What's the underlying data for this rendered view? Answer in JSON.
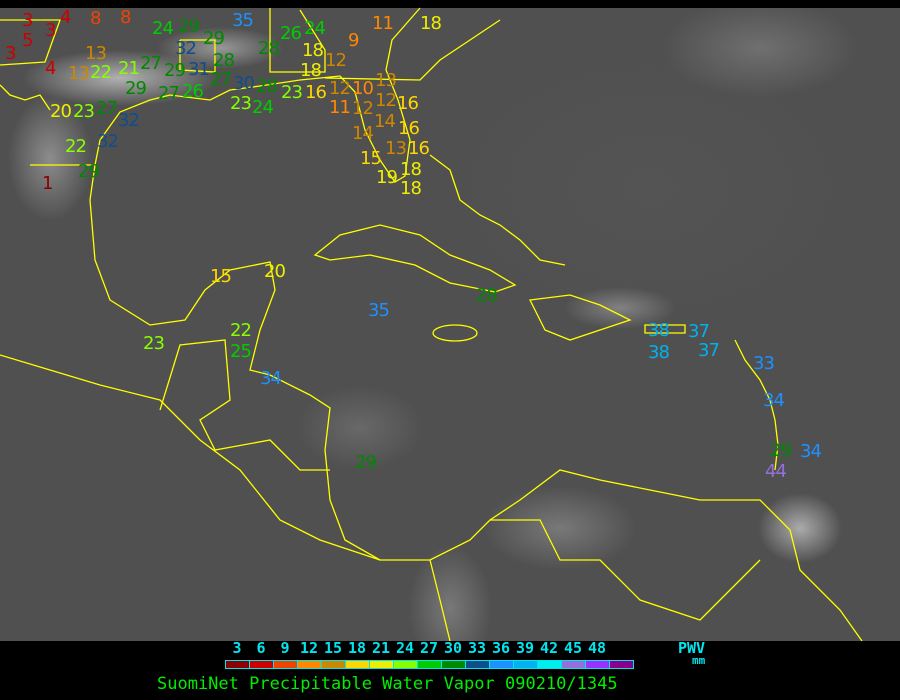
{
  "map": {
    "title": "SuomiNet Precipitable Water Vapor 090210/1345",
    "background": "infrared satellite imagery (grayscale)",
    "coastline_color": "#ffff00",
    "stations": [
      "3",
      "3",
      "4",
      "5",
      "3",
      "4",
      "8",
      "8",
      "13",
      "13",
      "22",
      "21",
      "27",
      "29",
      "29",
      "27",
      "26",
      "24",
      "29",
      "32",
      "31",
      "28",
      "29",
      "27",
      "30",
      "28",
      "23",
      "24",
      "20",
      "23",
      "27",
      "32",
      "32",
      "22",
      "29",
      "1",
      "35",
      "28",
      "26",
      "24",
      "18",
      "18",
      "12",
      "9",
      "11",
      "18",
      "23",
      "16",
      "12",
      "11",
      "10",
      "12",
      "13",
      "12",
      "16",
      "14",
      "16",
      "14",
      "13",
      "16",
      "18",
      "15",
      "19",
      "18",
      "15",
      "20",
      "23",
      "22",
      "25",
      "34",
      "35",
      "28",
      "29",
      "38",
      "38",
      "37",
      "37",
      "33",
      "34",
      "29",
      "34",
      "44"
    ]
  },
  "legend": {
    "label": "PWV",
    "unit": "mm",
    "ticks": [
      "3",
      "6",
      "9",
      "12",
      "15",
      "18",
      "21",
      "24",
      "27",
      "30",
      "33",
      "36",
      "39",
      "42",
      "45",
      "48"
    ],
    "colors": [
      "#8b0000",
      "#cc0000",
      "#ee4400",
      "#ff8800",
      "#cc8800",
      "#ffd700",
      "#eeee00",
      "#88ff00",
      "#00cc00",
      "#008800",
      "#104e8b",
      "#1e90ff",
      "#00b2ee",
      "#00eeee",
      "#9370db",
      "#9b30ff",
      "#8b008b"
    ]
  }
}
